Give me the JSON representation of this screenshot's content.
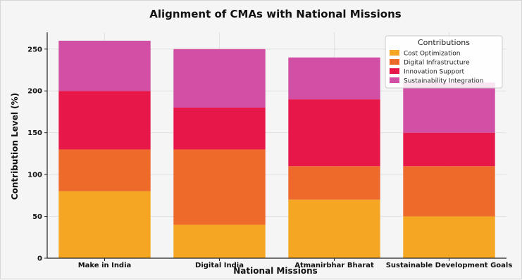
{
  "chart_data": {
    "type": "bar",
    "stacked": true,
    "title": "Alignment of CMAs with National Missions",
    "xlabel": "National Missions",
    "ylabel": "Contribution Level (%)",
    "ylim": [
      0,
      270
    ],
    "yticks": [
      0,
      50,
      100,
      150,
      200,
      250
    ],
    "categories": [
      "Make in India",
      "Digital India",
      "Atmanirbhar Bharat",
      "Sustainable Development Goals"
    ],
    "series": [
      {
        "name": "Cost Optimization",
        "color": "#f5a623",
        "values": [
          80,
          40,
          70,
          50
        ]
      },
      {
        "name": "Digital Infrastructure",
        "color": "#ee6a2b",
        "values": [
          50,
          90,
          40,
          60
        ]
      },
      {
        "name": "Innovation Support",
        "color": "#e8174a",
        "values": [
          70,
          50,
          80,
          40
        ]
      },
      {
        "name": "Sustainability Integration",
        "color": "#d14fa4",
        "values": [
          60,
          70,
          50,
          60
        ]
      }
    ],
    "grid": true,
    "legend": {
      "title": "Contributions",
      "position": "top-right"
    }
  }
}
